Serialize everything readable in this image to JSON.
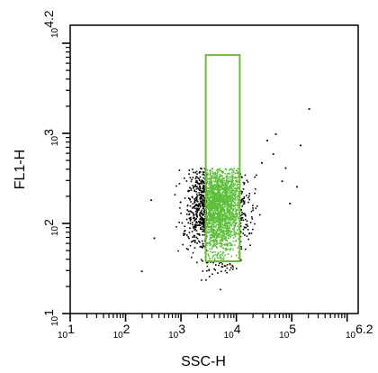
{
  "chart_data": {
    "type": "scatter",
    "title": "",
    "xlabel": "SSC-H",
    "ylabel": "FL1-H",
    "x_scale": "log",
    "y_scale": "log",
    "xlim": [
      10,
      1584893
    ],
    "ylim": [
      10,
      15849
    ],
    "x_tick_labels": [
      {
        "value": 10,
        "base": "10",
        "exp": "1"
      },
      {
        "value": 100,
        "base": "10",
        "exp": "2"
      },
      {
        "value": 1000,
        "base": "10",
        "exp": "3"
      },
      {
        "value": 10000,
        "base": "10",
        "exp": "4"
      },
      {
        "value": 100000,
        "base": "10",
        "exp": "5"
      },
      {
        "value": 1584893,
        "base": "10",
        "exp": "6.2"
      }
    ],
    "y_tick_labels": [
      {
        "value": 10,
        "base": "10",
        "exp": "1"
      },
      {
        "value": 100,
        "base": "10",
        "exp": "2"
      },
      {
        "value": 1000,
        "base": "10",
        "exp": "3"
      },
      {
        "value": 15849,
        "base": "10",
        "exp": "4.2"
      }
    ],
    "gate": {
      "shape": "rectangle",
      "x_range": [
        2800,
        11500
      ],
      "y_range": [
        38,
        7400
      ],
      "color": "#6fb83c"
    },
    "cloud": {
      "center_log": [
        3.65,
        2.2
      ],
      "spread_log": [
        0.24,
        0.27
      ],
      "ungated_color": "#000000",
      "gated_color": "#5cbf3a"
    },
    "outliers": [
      {
        "x": 200000,
        "y": 1900
      },
      {
        "x": 50000,
        "y": 1000
      },
      {
        "x": 35000,
        "y": 850
      },
      {
        "x": 140000,
        "y": 750
      },
      {
        "x": 28000,
        "y": 480
      },
      {
        "x": 65000,
        "y": 300
      },
      {
        "x": 90000,
        "y": 170
      },
      {
        "x": 190,
        "y": 30
      },
      {
        "x": 280,
        "y": 185
      },
      {
        "x": 320,
        "y": 70
      },
      {
        "x": 45000,
        "y": 600
      },
      {
        "x": 75000,
        "y": 420
      },
      {
        "x": 120000,
        "y": 260
      }
    ]
  }
}
